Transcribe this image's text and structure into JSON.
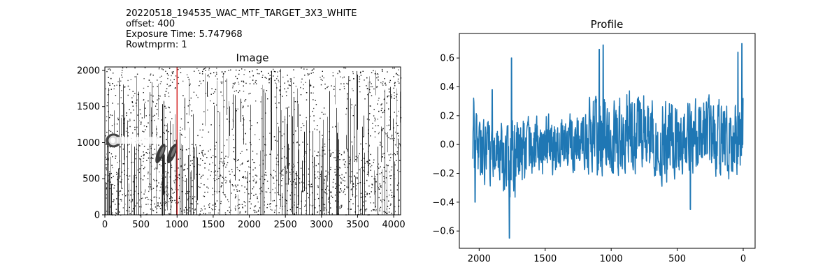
{
  "header": {
    "lines": [
      "20220518_194535_WAC_MTF_TARGET_3X3_WHITE",
      "offset: 400",
      "Exposure Time: 5.747968",
      "Rowtmprm: 1"
    ]
  },
  "chart_data": [
    {
      "type": "heatmap",
      "title": "Image",
      "xlim": [
        0,
        4096
      ],
      "ylim": [
        0,
        2048
      ],
      "xticks": [
        0,
        500,
        1000,
        1500,
        2000,
        2500,
        3000,
        3500,
        4000
      ],
      "yticks": [
        0,
        500,
        1000,
        1500,
        2000
      ],
      "colormap": "gray",
      "marker_line": {
        "x": 1000,
        "color": "#d62728"
      },
      "regions": [
        {
          "kind": "bright-spot",
          "x": 120,
          "y": 1030
        },
        {
          "kind": "dark-ellipse",
          "x": 770,
          "y": 850
        },
        {
          "kind": "dark-ellipse",
          "x": 930,
          "y": 850
        }
      ]
    },
    {
      "type": "line",
      "title": "Profile",
      "xlim": [
        2150,
        -90
      ],
      "ylim": [
        -0.72,
        0.77
      ],
      "xticks": [
        2000,
        1500,
        1000,
        500,
        0
      ],
      "yticks": [
        -0.6,
        -0.4,
        -0.2,
        0.0,
        0.2,
        0.4,
        0.6
      ],
      "xticklabels": [
        "2000",
        "1500",
        "1000",
        "500",
        "0"
      ],
      "yticklabels": [
        "−0.6",
        "−0.4",
        "−0.2",
        "0.0",
        "0.2",
        "0.4",
        "0.6"
      ],
      "series": [
        {
          "color": "#1f77b4",
          "x_start": 2048,
          "x_end": 0,
          "n_points": 2048,
          "envelope_x": [
            2040,
            1950,
            1850,
            1760,
            1700,
            1600,
            1500,
            1400,
            1300,
            1200,
            1100,
            1070,
            1000,
            900,
            800,
            700,
            620,
            500,
            400,
            300,
            200,
            100,
            20,
            5
          ],
          "envelope_hi": [
            0.31,
            0.2,
            0.22,
            0.25,
            0.23,
            0.23,
            0.28,
            0.25,
            0.3,
            0.35,
            0.55,
            0.45,
            0.35,
            0.45,
            0.4,
            0.4,
            0.42,
            0.38,
            0.4,
            0.4,
            0.38,
            0.38,
            0.4,
            0.55
          ],
          "envelope_lo": [
            -0.4,
            -0.3,
            -0.4,
            -0.55,
            -0.4,
            -0.3,
            -0.3,
            -0.22,
            -0.25,
            -0.25,
            -0.3,
            -0.35,
            -0.25,
            -0.28,
            -0.25,
            -0.25,
            -0.35,
            -0.3,
            -0.3,
            -0.3,
            -0.3,
            -0.3,
            -0.25,
            -0.28
          ],
          "peaks": [
            [
              1755,
              0.6
            ],
            [
              1060,
              0.69
            ],
            [
              1090,
              0.66
            ],
            [
              10,
              0.7
            ],
            [
              40,
              0.64
            ],
            [
              1770,
              -0.65
            ],
            [
              2030,
              -0.4
            ],
            [
              400,
              -0.45
            ],
            [
              1900,
              0.38
            ]
          ]
        }
      ]
    }
  ]
}
